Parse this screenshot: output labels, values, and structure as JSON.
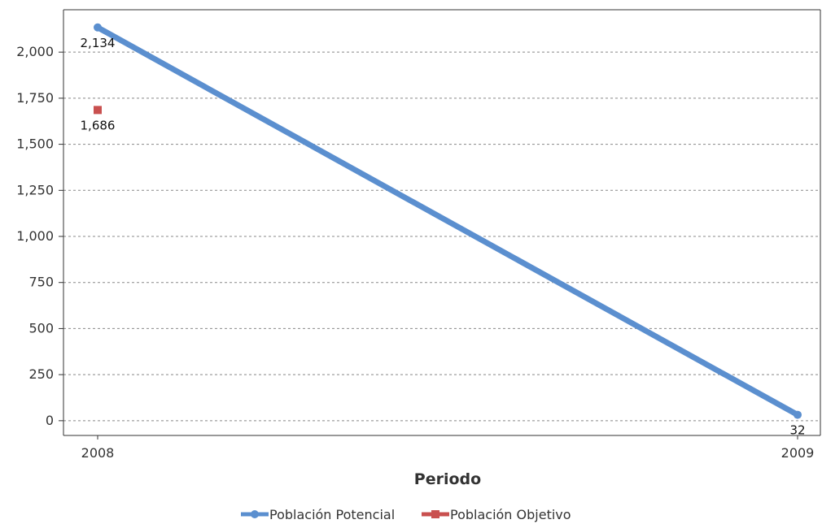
{
  "chart_data": {
    "type": "line",
    "title": "",
    "xlabel": "Periodo",
    "ylabel": "",
    "categories": [
      "2008",
      "2009"
    ],
    "series": [
      {
        "name": "Población Potencial",
        "values": [
          2134,
          32
        ],
        "labels": [
          "2,134",
          "32"
        ],
        "color": "#5b8fcf",
        "marker": "circle"
      },
      {
        "name": "Población Objetivo",
        "values": [
          1686,
          null
        ],
        "labels": [
          "1,686",
          null
        ],
        "color": "#c9504f",
        "marker": "square"
      }
    ],
    "ylim": [
      -80,
      2230
    ],
    "yticks": [
      0,
      250,
      500,
      750,
      1000,
      1250,
      1500,
      1750,
      2000
    ],
    "ytick_labels": [
      "0",
      "250",
      "500",
      "750",
      "1,000",
      "1,250",
      "1,500",
      "1,750",
      "2,000"
    ],
    "grid": true,
    "legend_position": "bottom-center"
  }
}
